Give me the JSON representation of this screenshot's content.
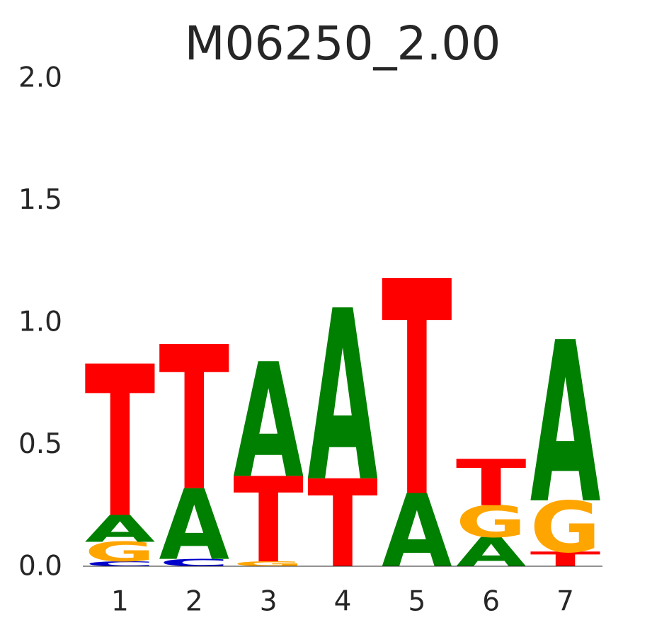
{
  "chart_data": {
    "type": "sequence-logo",
    "title": "M06250_2.00",
    "xlabel": "",
    "ylabel": "",
    "ylim": [
      0,
      2
    ],
    "yticks": [
      "0.0",
      "0.5",
      "1.0",
      "1.5",
      "2.0"
    ],
    "ytick_values": [
      0,
      0.5,
      1,
      1.5,
      2
    ],
    "positions": [
      "1",
      "2",
      "3",
      "4",
      "5",
      "6",
      "7"
    ],
    "colors": {
      "A": "#008000",
      "C": "#0000cc",
      "G": "#ffa500",
      "T": "#ff0000"
    },
    "stacks": [
      [
        {
          "base": "C",
          "height": 0.02
        },
        {
          "base": "G",
          "height": 0.08
        },
        {
          "base": "A",
          "height": 0.11
        },
        {
          "base": "T",
          "height": 0.62
        }
      ],
      [
        {
          "base": "C",
          "height": 0.03
        },
        {
          "base": "A",
          "height": 0.29
        },
        {
          "base": "T",
          "height": 0.59
        }
      ],
      [
        {
          "base": "G",
          "height": 0.02
        },
        {
          "base": "T",
          "height": 0.35
        },
        {
          "base": "A",
          "height": 0.47
        }
      ],
      [
        {
          "base": "T",
          "height": 0.36
        },
        {
          "base": "A",
          "height": 0.7
        }
      ],
      [
        {
          "base": "A",
          "height": 0.3
        },
        {
          "base": "T",
          "height": 0.88
        }
      ],
      [
        {
          "base": "A",
          "height": 0.12
        },
        {
          "base": "G",
          "height": 0.13
        },
        {
          "base": "T",
          "height": 0.19
        }
      ],
      [
        {
          "base": "T",
          "height": 0.06
        },
        {
          "base": "G",
          "height": 0.21
        },
        {
          "base": "A",
          "height": 0.66
        }
      ]
    ]
  }
}
